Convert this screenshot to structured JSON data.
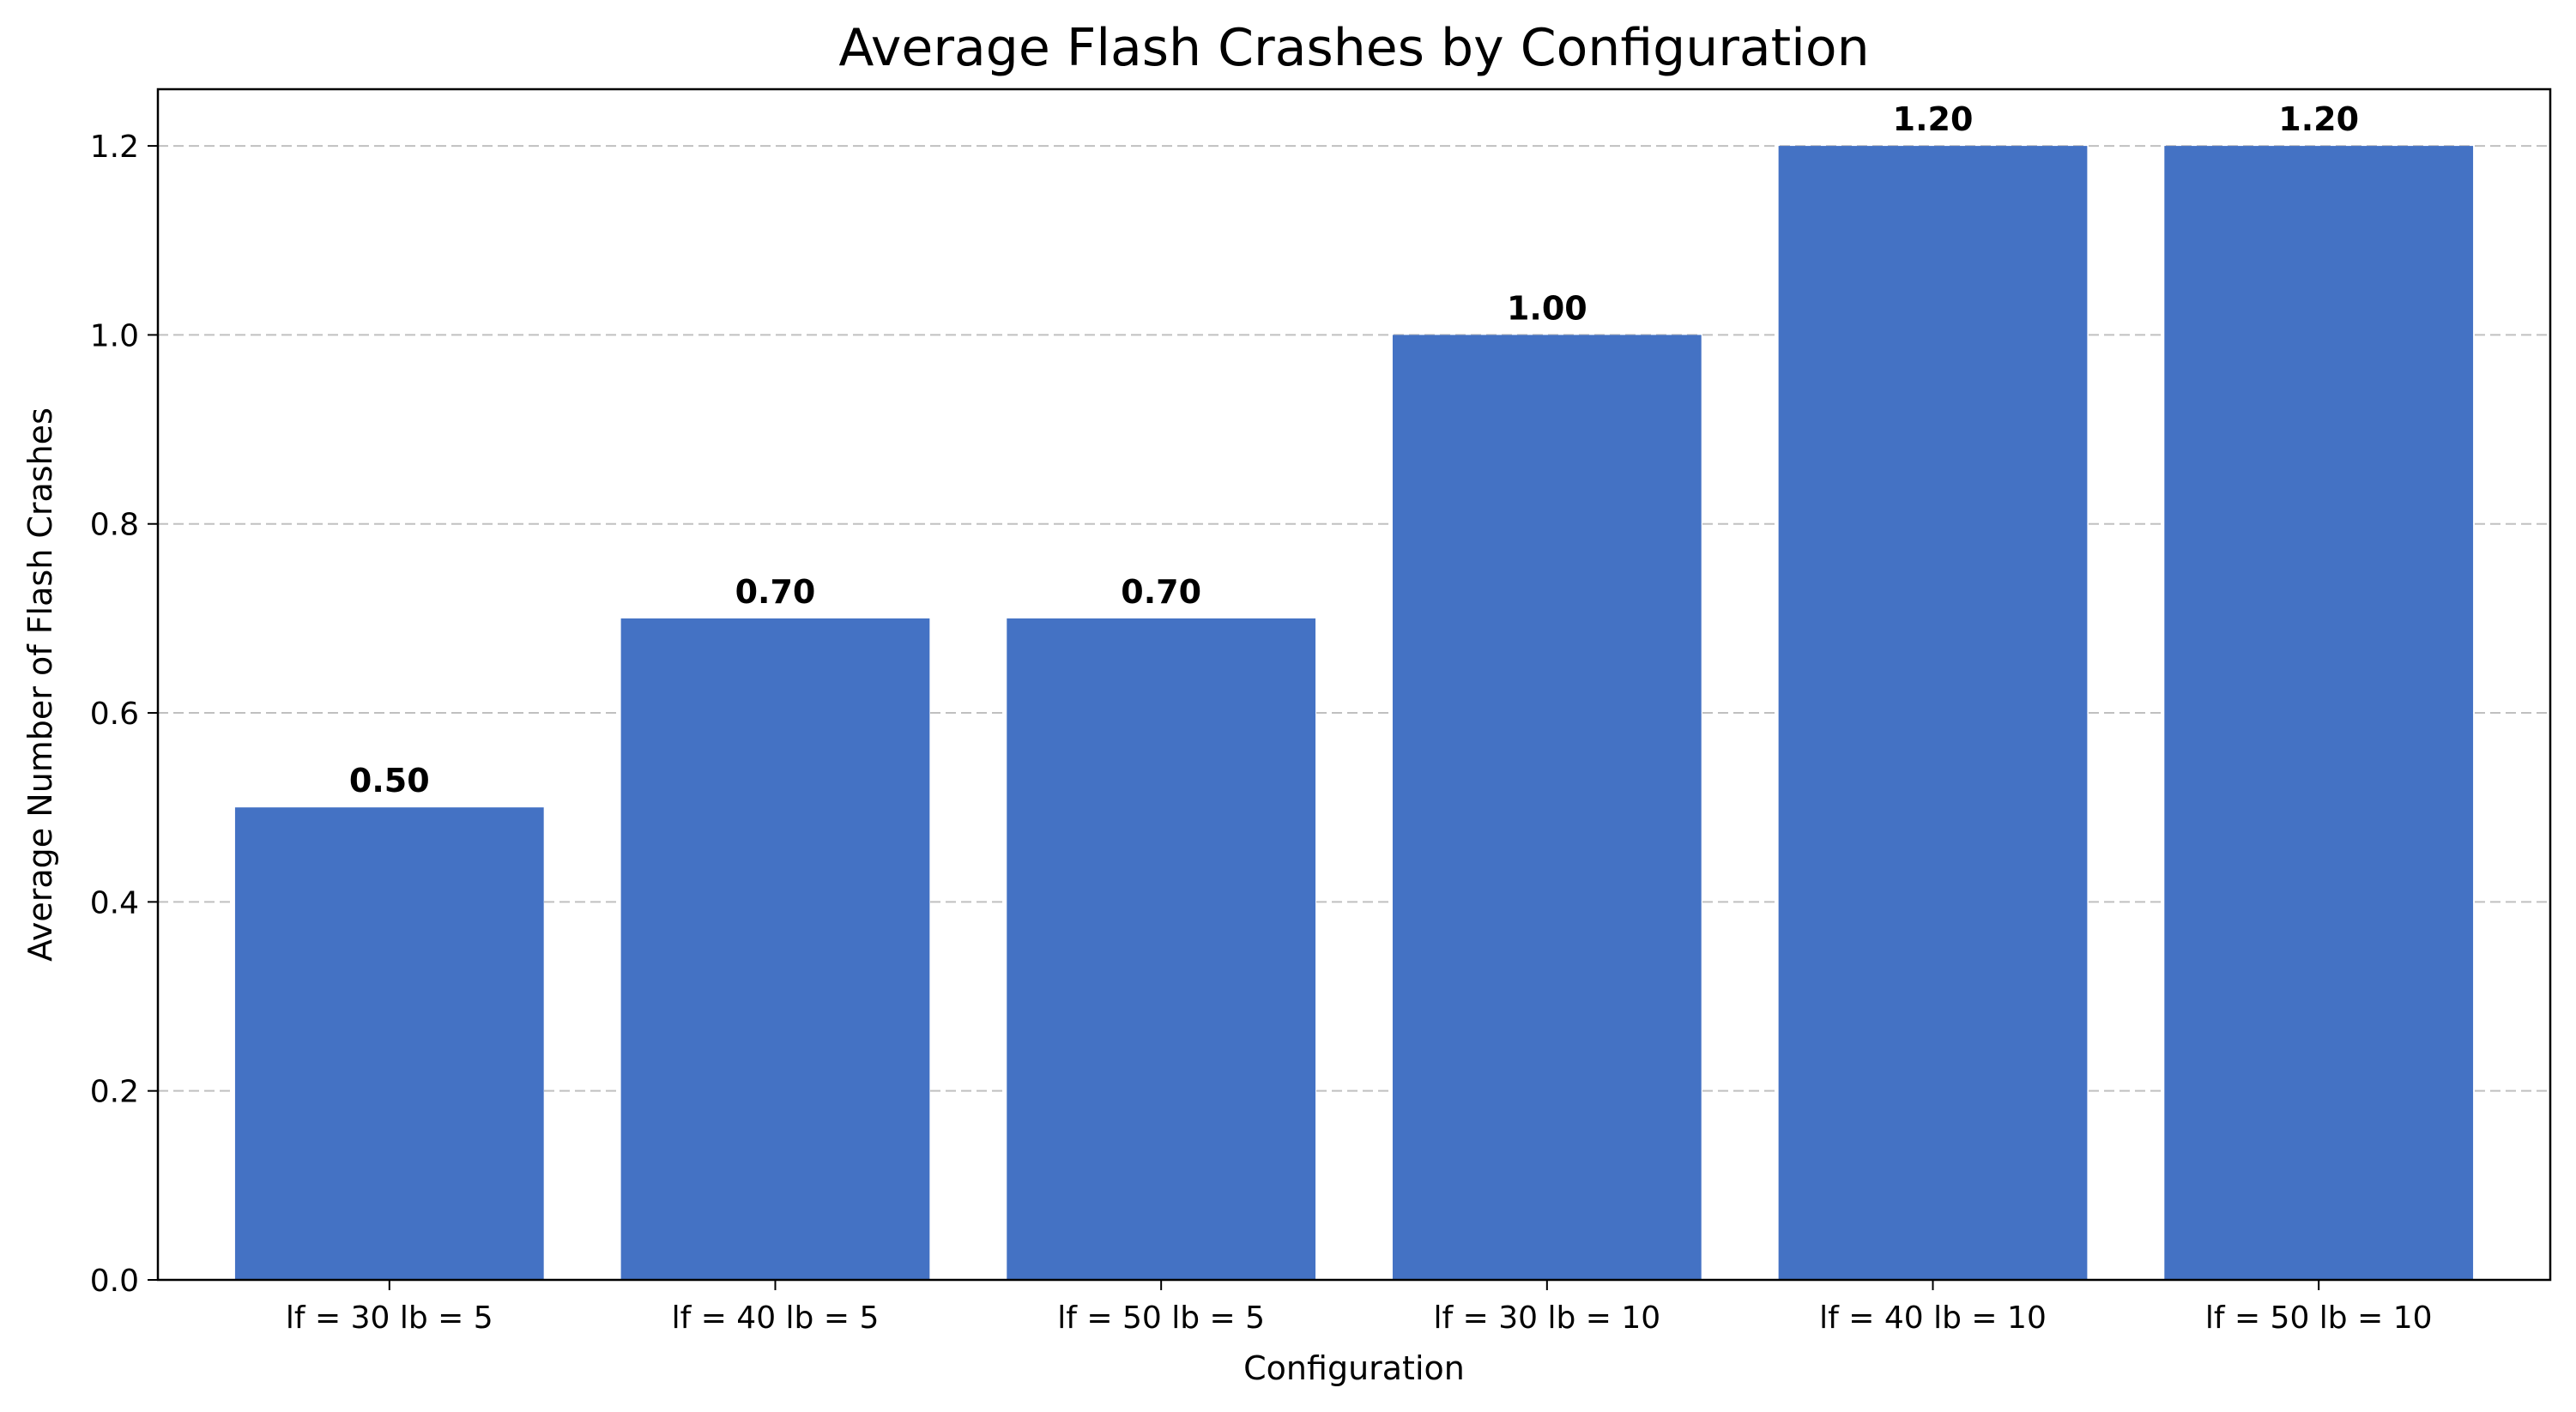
{
  "chart_data": {
    "type": "bar",
    "title": "Average Flash Crashes by Configuration",
    "xlabel": "Configuration",
    "ylabel": "Average Number of Flash Crashes",
    "categories": [
      "lf = 30 lb = 5",
      "lf = 40 lb = 5",
      "lf = 50 lb = 5",
      "lf = 30 lb = 10",
      "lf = 40 lb = 10",
      "lf = 50 lb = 10"
    ],
    "values": [
      0.5,
      0.7,
      0.7,
      1.0,
      1.2,
      1.2
    ],
    "data_labels": [
      "0.50",
      "0.70",
      "0.70",
      "1.00",
      "1.20",
      "1.20"
    ],
    "ylim": [
      0,
      1.26
    ],
    "yticks": [
      0.0,
      0.2,
      0.4,
      0.6,
      0.8,
      1.0,
      1.2
    ],
    "ytick_labels": [
      "0.0",
      "0.2",
      "0.4",
      "0.6",
      "0.8",
      "1.0",
      "1.2"
    ],
    "grid": "y-dashed",
    "bar_color": "#4472C4"
  }
}
